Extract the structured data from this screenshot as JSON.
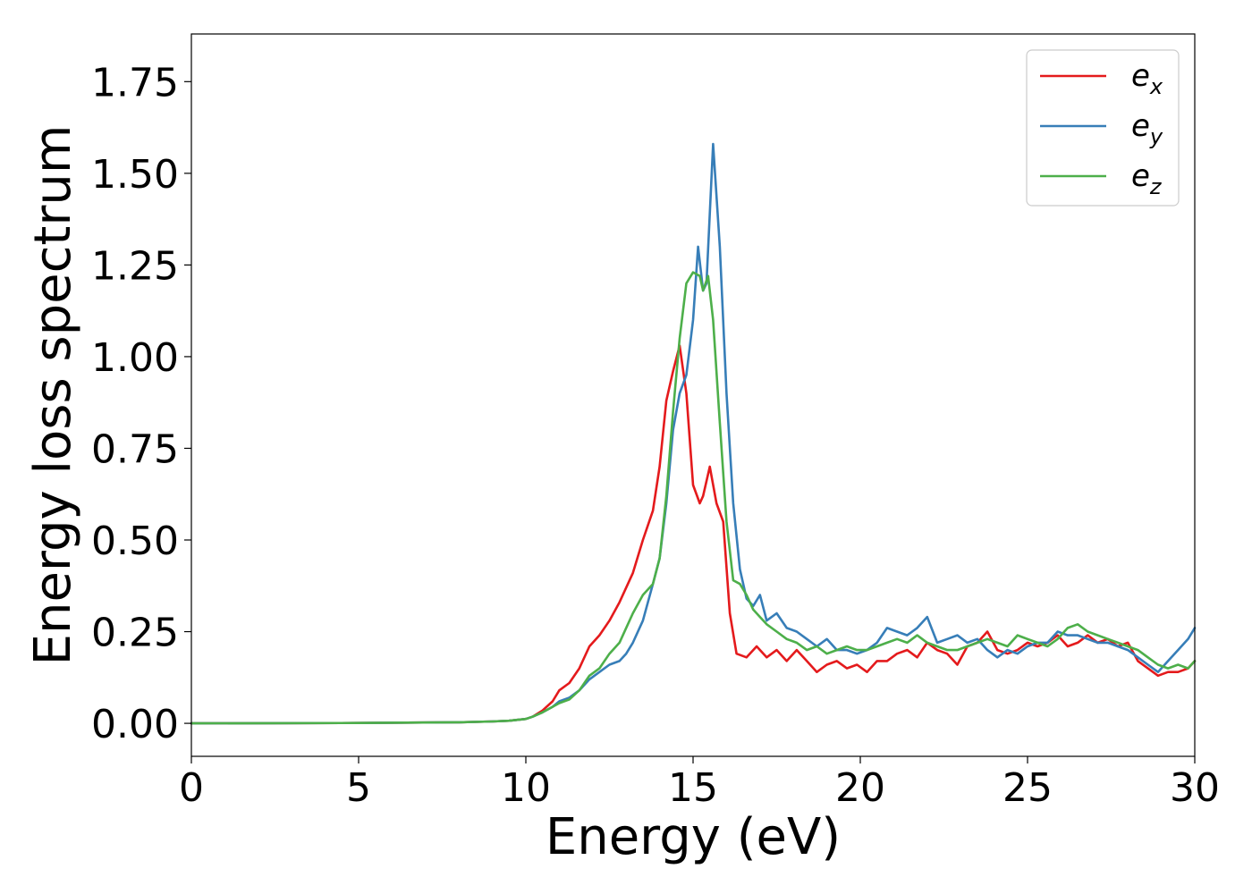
{
  "chart_data": {
    "type": "line",
    "title": "",
    "xlabel": "Energy (eV)",
    "ylabel": "Energy loss spectrum",
    "xlim": [
      0,
      30
    ],
    "ylim": [
      -0.09,
      1.88
    ],
    "xticks": [
      0,
      5,
      10,
      15,
      20,
      25,
      30
    ],
    "xtick_labels": [
      "0",
      "5",
      "10",
      "15",
      "20",
      "25",
      "30"
    ],
    "yticks": [
      0.0,
      0.25,
      0.5,
      0.75,
      1.0,
      1.25,
      1.5,
      1.75
    ],
    "ytick_labels": [
      "0.00",
      "0.25",
      "0.50",
      "0.75",
      "1.00",
      "1.25",
      "1.50",
      "1.75"
    ],
    "grid": false,
    "legend_position": "top-right",
    "colors": {
      "e_x": "#e41a1c",
      "e_y": "#377eb8",
      "e_z": "#4daf4a"
    },
    "series": [
      {
        "name": "e_x",
        "legend_base": "e",
        "legend_sub": "x",
        "x": [
          0,
          5,
          8,
          9,
          9.5,
          10,
          10.2,
          10.5,
          10.8,
          11,
          11.3,
          11.6,
          11.9,
          12.2,
          12.5,
          12.8,
          13,
          13.2,
          13.5,
          13.8,
          14,
          14.2,
          14.4,
          14.6,
          14.8,
          15,
          15.2,
          15.3,
          15.5,
          15.7,
          15.9,
          16.1,
          16.3,
          16.6,
          16.9,
          17.2,
          17.5,
          17.8,
          18.1,
          18.4,
          18.7,
          19,
          19.3,
          19.6,
          19.9,
          20.2,
          20.5,
          20.8,
          21.1,
          21.4,
          21.7,
          22,
          22.3,
          22.6,
          22.9,
          23.2,
          23.5,
          23.8,
          24.1,
          24.4,
          24.7,
          25,
          25.3,
          25.6,
          25.9,
          26.2,
          26.5,
          26.8,
          27.1,
          27.4,
          27.7,
          28,
          28.3,
          28.6,
          28.9,
          29.2,
          29.5,
          29.8,
          30
        ],
        "y": [
          0,
          0.001,
          0.003,
          0.005,
          0.007,
          0.012,
          0.018,
          0.035,
          0.06,
          0.09,
          0.11,
          0.15,
          0.21,
          0.24,
          0.28,
          0.33,
          0.37,
          0.41,
          0.5,
          0.58,
          0.7,
          0.88,
          0.96,
          1.03,
          0.9,
          0.65,
          0.6,
          0.62,
          0.7,
          0.6,
          0.55,
          0.3,
          0.19,
          0.18,
          0.21,
          0.18,
          0.2,
          0.17,
          0.2,
          0.17,
          0.14,
          0.16,
          0.17,
          0.15,
          0.16,
          0.14,
          0.17,
          0.17,
          0.19,
          0.2,
          0.18,
          0.22,
          0.2,
          0.19,
          0.16,
          0.21,
          0.22,
          0.25,
          0.2,
          0.19,
          0.2,
          0.22,
          0.21,
          0.22,
          0.24,
          0.21,
          0.22,
          0.24,
          0.22,
          0.23,
          0.21,
          0.22,
          0.17,
          0.15,
          0.13,
          0.14,
          0.14,
          0.15,
          0.17
        ]
      },
      {
        "name": "e_y",
        "legend_base": "e",
        "legend_sub": "y",
        "x": [
          0,
          5,
          8,
          9,
          9.5,
          10,
          10.2,
          10.5,
          10.8,
          11,
          11.3,
          11.6,
          11.9,
          12.2,
          12.5,
          12.8,
          13,
          13.2,
          13.5,
          13.8,
          14,
          14.2,
          14.4,
          14.6,
          14.8,
          15,
          15.15,
          15.3,
          15.4,
          15.6,
          15.8,
          16,
          16.2,
          16.4,
          16.6,
          16.8,
          17,
          17.2,
          17.5,
          17.8,
          18.1,
          18.4,
          18.7,
          19,
          19.3,
          19.6,
          19.9,
          20.2,
          20.5,
          20.8,
          21.1,
          21.4,
          21.7,
          22,
          22.3,
          22.6,
          22.9,
          23.2,
          23.5,
          23.8,
          24.1,
          24.4,
          24.7,
          25,
          25.3,
          25.6,
          25.9,
          26.2,
          26.5,
          26.8,
          27.1,
          27.4,
          27.7,
          28,
          28.3,
          28.6,
          28.9,
          29.2,
          29.5,
          29.8,
          30
        ],
        "y": [
          0,
          0.001,
          0.003,
          0.005,
          0.007,
          0.012,
          0.018,
          0.03,
          0.045,
          0.06,
          0.07,
          0.09,
          0.12,
          0.14,
          0.16,
          0.17,
          0.19,
          0.22,
          0.28,
          0.38,
          0.45,
          0.6,
          0.8,
          0.9,
          0.95,
          1.1,
          1.3,
          1.18,
          1.2,
          1.58,
          1.3,
          0.9,
          0.6,
          0.42,
          0.34,
          0.32,
          0.35,
          0.28,
          0.3,
          0.26,
          0.25,
          0.23,
          0.21,
          0.23,
          0.2,
          0.2,
          0.19,
          0.2,
          0.22,
          0.26,
          0.25,
          0.24,
          0.26,
          0.29,
          0.22,
          0.23,
          0.24,
          0.22,
          0.23,
          0.2,
          0.18,
          0.2,
          0.19,
          0.21,
          0.22,
          0.22,
          0.25,
          0.24,
          0.24,
          0.23,
          0.22,
          0.22,
          0.21,
          0.2,
          0.18,
          0.16,
          0.14,
          0.17,
          0.2,
          0.23,
          0.26
        ]
      },
      {
        "name": "e_z",
        "legend_base": "e",
        "legend_sub": "z",
        "x": [
          0,
          5,
          8,
          9,
          9.5,
          10,
          10.2,
          10.5,
          10.8,
          11,
          11.3,
          11.6,
          11.9,
          12.2,
          12.5,
          12.8,
          13,
          13.2,
          13.5,
          13.8,
          14,
          14.2,
          14.4,
          14.6,
          14.8,
          15,
          15.2,
          15.3,
          15.45,
          15.6,
          15.8,
          16,
          16.2,
          16.4,
          16.6,
          16.8,
          17,
          17.2,
          17.5,
          17.8,
          18.1,
          18.4,
          18.7,
          19,
          19.3,
          19.6,
          19.9,
          20.2,
          20.5,
          20.8,
          21.1,
          21.4,
          21.7,
          22,
          22.3,
          22.6,
          22.9,
          23.2,
          23.5,
          23.8,
          24.1,
          24.4,
          24.7,
          25,
          25.3,
          25.6,
          25.9,
          26.2,
          26.5,
          26.8,
          27.1,
          27.4,
          27.7,
          28,
          28.3,
          28.6,
          28.9,
          29.2,
          29.5,
          29.8,
          30
        ],
        "y": [
          0,
          0.001,
          0.003,
          0.005,
          0.007,
          0.012,
          0.018,
          0.03,
          0.045,
          0.055,
          0.065,
          0.09,
          0.13,
          0.15,
          0.19,
          0.22,
          0.26,
          0.3,
          0.35,
          0.38,
          0.45,
          0.62,
          0.85,
          1.05,
          1.2,
          1.23,
          1.22,
          1.18,
          1.22,
          1.1,
          0.82,
          0.55,
          0.39,
          0.38,
          0.35,
          0.31,
          0.29,
          0.27,
          0.25,
          0.23,
          0.22,
          0.2,
          0.21,
          0.19,
          0.2,
          0.21,
          0.2,
          0.2,
          0.21,
          0.22,
          0.23,
          0.22,
          0.24,
          0.22,
          0.21,
          0.2,
          0.2,
          0.21,
          0.22,
          0.23,
          0.22,
          0.21,
          0.24,
          0.23,
          0.22,
          0.21,
          0.23,
          0.26,
          0.27,
          0.25,
          0.24,
          0.23,
          0.22,
          0.21,
          0.2,
          0.18,
          0.16,
          0.15,
          0.16,
          0.15,
          0.17
        ]
      }
    ]
  }
}
